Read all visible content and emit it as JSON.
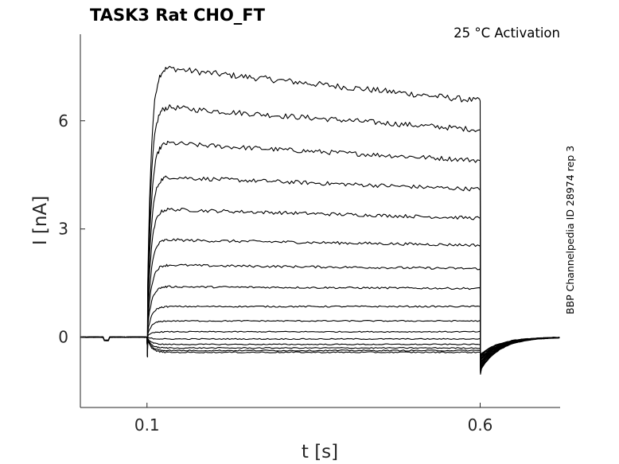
{
  "chart_data": {
    "type": "line",
    "title": "TASK3  Rat  CHO_FT",
    "annotation": "25 °C  Activation",
    "side_label": "BBP Channelpedia ID 28974 rep 3",
    "xlabel": "t [s]",
    "ylabel": "I [nA]",
    "xlim": [
      0.0,
      0.72
    ],
    "ylim": [
      -1.95,
      8.4
    ],
    "x_ticks": [
      0.1,
      0.6
    ],
    "x_tick_labels": [
      "0.1",
      "0.6"
    ],
    "y_ticks": [
      0,
      3,
      6
    ],
    "y_tick_labels": [
      "0",
      "3",
      "6"
    ],
    "grid": false,
    "legend": "none",
    "line_color": "#000000",
    "step_on": 0.1,
    "step_off": 0.6,
    "series": [
      {
        "start": 7.5,
        "end": 6.55
      },
      {
        "start": 6.4,
        "end": 5.75
      },
      {
        "start": 5.4,
        "end": 4.9
      },
      {
        "start": 4.45,
        "end": 4.1
      },
      {
        "start": 3.55,
        "end": 3.3
      },
      {
        "start": 2.7,
        "end": 2.55
      },
      {
        "start": 2.0,
        "end": 1.9
      },
      {
        "start": 1.4,
        "end": 1.35
      },
      {
        "start": 0.85,
        "end": 0.85
      },
      {
        "start": 0.45,
        "end": 0.45
      },
      {
        "start": 0.15,
        "end": 0.15
      },
      {
        "start": -0.05,
        "end": -0.05
      },
      {
        "start": -0.2,
        "end": -0.2
      },
      {
        "start": -0.3,
        "end": -0.3
      },
      {
        "start": -0.37,
        "end": -0.37
      },
      {
        "start": -0.42,
        "end": -0.42
      }
    ]
  }
}
